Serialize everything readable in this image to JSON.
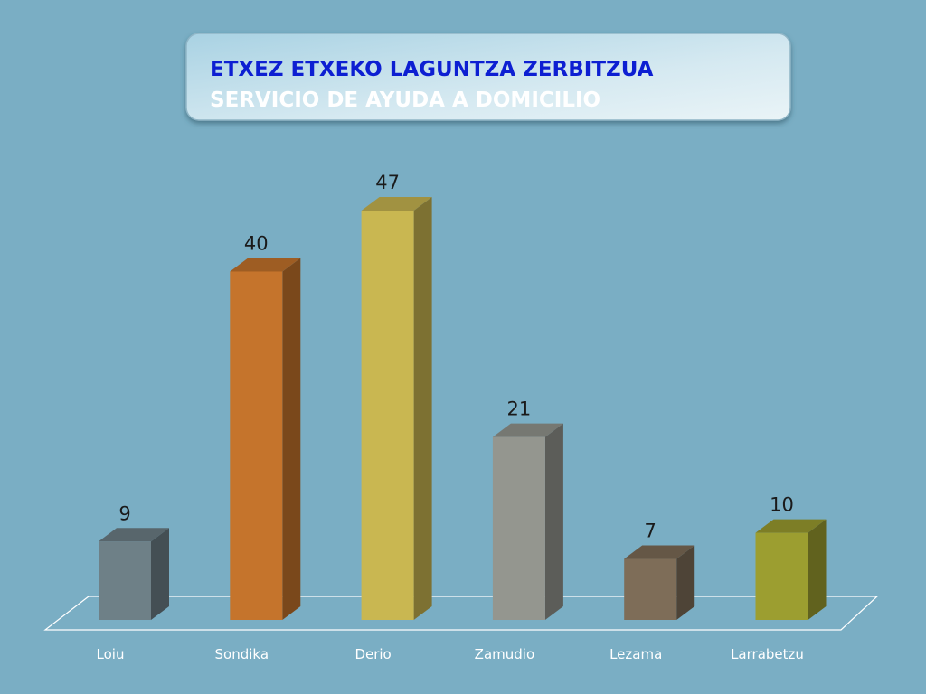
{
  "chart_data": {
    "type": "bar3d",
    "title": "ETXEZ ETXEKO LAGUNTZA ZERBITZUA",
    "subtitle": "SERVICIO DE AYUDA A DOMICILIO",
    "categories": [
      "Loiu",
      "Sondika",
      "Derio",
      "Zamudio",
      "Lezama",
      "Larrabetzu"
    ],
    "values": [
      9,
      40,
      47,
      21,
      7,
      10
    ],
    "colors": [
      "#6e8087",
      "#c5742c",
      "#c9b751",
      "#94968f",
      "#7e6d58",
      "#9c9e30"
    ]
  }
}
